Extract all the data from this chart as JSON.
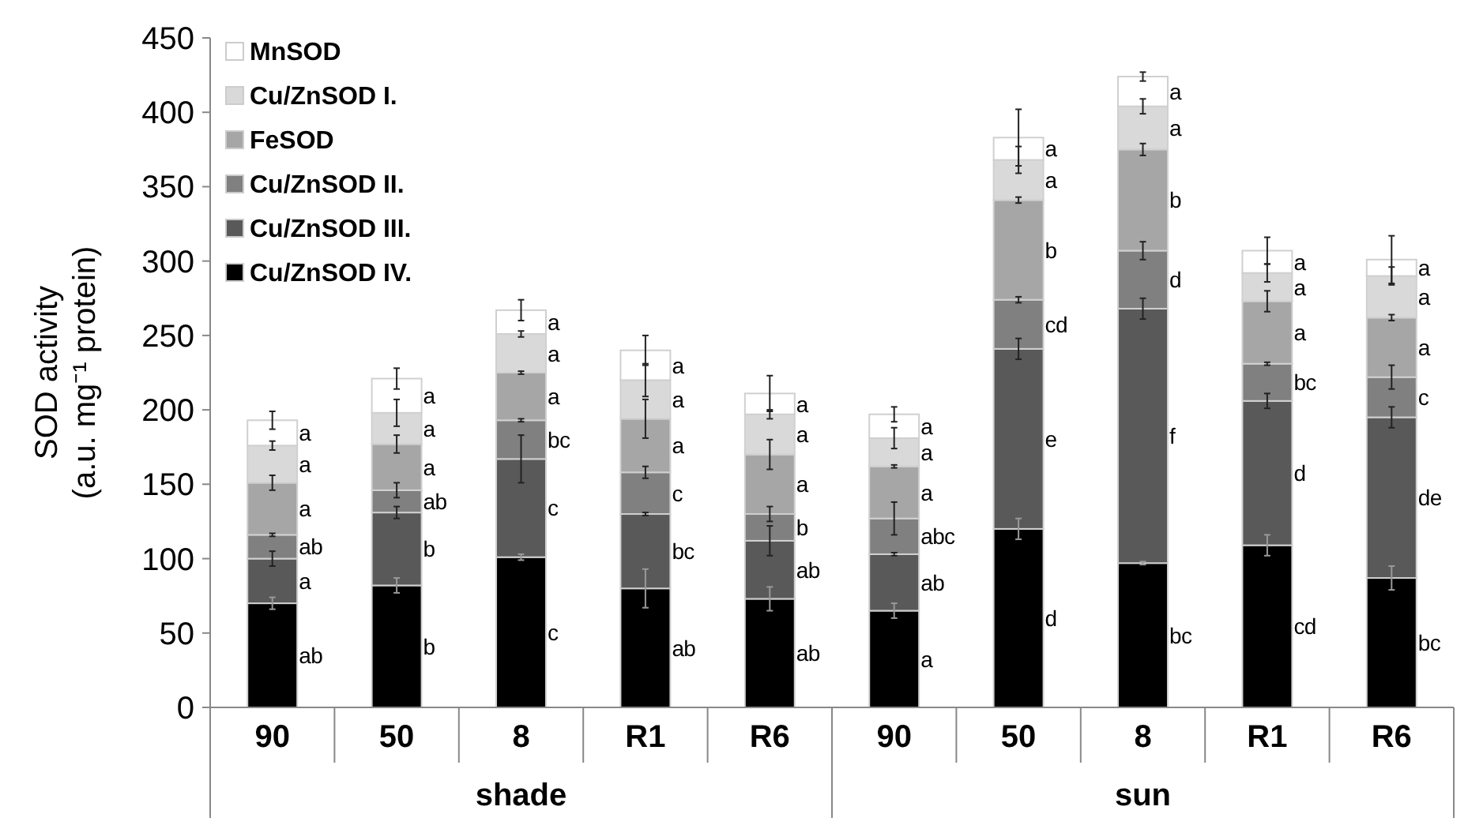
{
  "chart_data": {
    "type": "bar",
    "stacked": true,
    "ylabel": "SOD activity\n(a.u. mg⁻¹ protein)",
    "categories": [
      "90",
      "50",
      "8",
      "R1",
      "R6",
      "90",
      "50",
      "8",
      "R1",
      "R6"
    ],
    "annotations": [
      "shade",
      "sun"
    ],
    "ylim": [
      0,
      450
    ],
    "yticks": [
      0,
      50,
      100,
      150,
      200,
      250,
      300,
      350,
      400,
      450
    ],
    "grid": false,
    "legend": "top left",
    "series": [
      {
        "name": "Cu/ZnSOD IV.",
        "color": "#000000",
        "values": [
          70,
          82,
          101,
          80,
          73,
          65,
          120,
          97,
          109,
          87
        ],
        "errors": [
          4,
          5,
          2,
          13,
          8,
          5,
          7,
          1,
          7,
          8
        ],
        "value_labels": [
          "ab",
          "b",
          "c",
          "ab",
          "ab",
          "a",
          "d",
          "bc",
          "cd",
          "bc"
        ]
      },
      {
        "name": "Cu/ZnSOD III.",
        "color": "#595959",
        "values": [
          30,
          49,
          66,
          50,
          39,
          38,
          121,
          171,
          97,
          108
        ],
        "errors": [
          5,
          4,
          16,
          1,
          10,
          1,
          7,
          7,
          5,
          7
        ],
        "value_labels": [
          "a",
          "b",
          "c",
          "bc",
          "ab",
          "ab",
          "e",
          "f",
          "d",
          "de"
        ]
      },
      {
        "name": "Cu/ZnSOD II.",
        "color": "#808080",
        "values": [
          16,
          15,
          26,
          28,
          18,
          24,
          33,
          39,
          25,
          27
        ],
        "errors": [
          1,
          5,
          1,
          4,
          5,
          11,
          2,
          6,
          1,
          8
        ],
        "value_labels": [
          "ab",
          "ab",
          "bc",
          "c",
          "b",
          "abc",
          "cd",
          "d",
          "bc",
          "c"
        ]
      },
      {
        "name": "FeSOD",
        "color": "#a6a6a6",
        "values": [
          35,
          31,
          32,
          36,
          40,
          35,
          67,
          68,
          42,
          40
        ],
        "errors": [
          5,
          6,
          1,
          13,
          10,
          1,
          2,
          4,
          7,
          2
        ],
        "value_labels": [
          "a",
          "a",
          "a",
          "a",
          "a",
          "a",
          "b",
          "b",
          "a",
          "a"
        ]
      },
      {
        "name": "Cu/ZnSOD I.",
        "color": "#d9d9d9",
        "values": [
          25,
          21,
          26,
          26,
          27,
          19,
          27,
          29,
          19,
          28
        ],
        "errors": [
          3,
          9,
          2,
          11,
          3,
          7,
          9,
          5,
          6,
          6
        ],
        "value_labels": [
          "a",
          "a",
          "a",
          "a",
          "a",
          "a",
          "a",
          "a",
          "a",
          "a"
        ]
      },
      {
        "name": "MnSOD",
        "color": "#ffffff",
        "values": [
          17,
          23,
          16,
          20,
          14,
          16,
          15,
          20,
          15,
          11
        ],
        "errors": [
          6,
          7,
          7,
          10,
          12,
          5,
          19,
          3,
          9,
          16
        ],
        "value_labels": [
          "a",
          "a",
          "a",
          "a",
          "a",
          "a",
          "a",
          "a",
          "a",
          "a"
        ]
      }
    ]
  }
}
